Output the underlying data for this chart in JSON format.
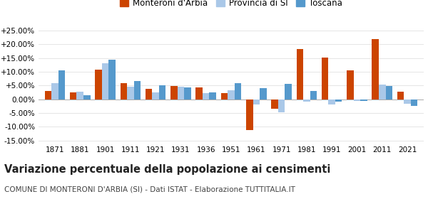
{
  "years": [
    1871,
    1881,
    1901,
    1911,
    1921,
    1931,
    1936,
    1951,
    1961,
    1971,
    1981,
    1991,
    2001,
    2011,
    2021
  ],
  "monteroni": [
    3.0,
    2.5,
    10.8,
    6.0,
    3.8,
    4.9,
    4.2,
    2.3,
    -11.2,
    -3.5,
    18.2,
    15.3,
    10.5,
    21.8,
    2.7
  ],
  "provincia": [
    6.0,
    2.8,
    13.0,
    4.5,
    2.5,
    4.5,
    2.2,
    3.2,
    -2.0,
    -4.8,
    -0.8,
    -1.8,
    -0.7,
    5.3,
    -1.7
  ],
  "toscana": [
    10.5,
    1.5,
    14.5,
    6.6,
    5.1,
    4.4,
    2.5,
    6.0,
    4.0,
    5.6,
    3.0,
    -0.9,
    -0.5,
    4.9,
    -2.5
  ],
  "color_monteroni": "#cc4400",
  "color_provincia": "#aac8e8",
  "color_toscana": "#5599cc",
  "background": "#ffffff",
  "title": "Variazione percentuale della popolazione ai censimenti",
  "subtitle": "COMUNE DI MONTERONI D'ARBIA (SI) - Dati ISTAT - Elaborazione TUTTITALIA.IT",
  "ylim": [
    -16,
    26
  ],
  "yticks": [
    -15,
    -10,
    -5,
    0,
    5,
    10,
    15,
    20,
    25
  ],
  "grid_color": "#e0e0e0",
  "legend_labels": [
    "Monteroni d'Arbia",
    "Provincia di SI",
    "Toscana"
  ],
  "bar_width": 0.27,
  "title_fontsize": 10.5,
  "subtitle_fontsize": 7.5,
  "tick_fontsize": 7.5,
  "legend_fontsize": 8.5
}
